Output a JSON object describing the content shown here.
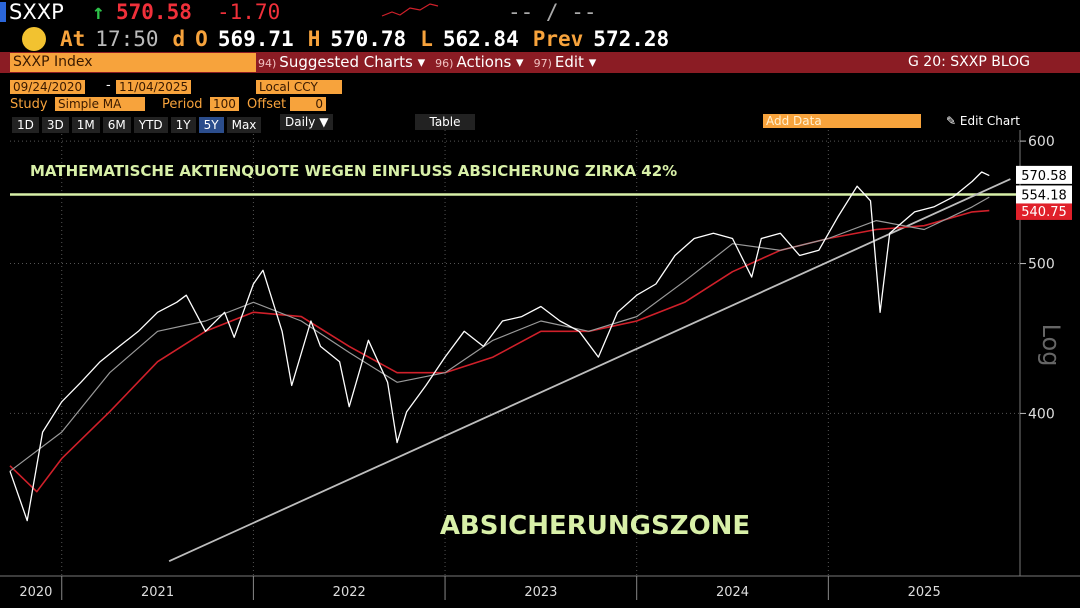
{
  "header": {
    "ticker": "SXXP",
    "arrow": "↑",
    "last": "570.58",
    "change": "-1.70",
    "bid_ask": "-- / --",
    "quote": [
      [
        "At",
        "17:50"
      ],
      [
        "d",
        ""
      ],
      [
        "O",
        "569.71"
      ],
      [
        "H",
        "570.78"
      ],
      [
        "L",
        "562.84"
      ],
      [
        "Prev",
        "572.28"
      ]
    ]
  },
  "toolbar": {
    "security": "SXXP Index",
    "menus": [
      {
        "num": "94)",
        "label": "Suggested Charts"
      },
      {
        "num": "96)",
        "label": "Actions"
      },
      {
        "num": "97)",
        "label": "Edit"
      }
    ],
    "right": "G 20: SXXP BLOG",
    "start_date": "09/24/2020",
    "date_sep": "-",
    "end_date": "11/04/2025",
    "currency": "Local CCY",
    "study_label": "Study",
    "study": "Simple MA",
    "period_label": "Period",
    "period": "100",
    "offset_label": "Offset",
    "offset": "0",
    "ranges": [
      {
        "label": "1D"
      },
      {
        "label": "3D"
      },
      {
        "label": "1M"
      },
      {
        "label": "6M"
      },
      {
        "label": "YTD"
      },
      {
        "label": "1Y"
      },
      {
        "label": "5Y",
        "active": true
      },
      {
        "label": "Max"
      }
    ],
    "frequency": "Daily",
    "table": "Table",
    "add_data": "Add Data",
    "edit_chart": "Edit Chart"
  },
  "chart_data": {
    "type": "line",
    "log_scale": true,
    "y_axis_label": "Log",
    "annotations": [
      "MATHEMATISCHE AKTIENQUOTE WEGEN EINFLUSS ABSICHERUNG ZIRKA 42%",
      "ABSICHERUNGSZONE"
    ],
    "xlim": [
      2020.73,
      2026.0
    ],
    "xticks": [
      {
        "value": 2020,
        "label": "2020"
      },
      {
        "value": 2021,
        "label": "2021"
      },
      {
        "value": 2022,
        "label": "2022"
      },
      {
        "value": 2023,
        "label": "2023"
      },
      {
        "value": 2024,
        "label": "2024"
      },
      {
        "value": 2025,
        "label": "2025"
      }
    ],
    "ylim": [
      314,
      610
    ],
    "yticks": [
      400,
      500,
      600
    ],
    "series": [
      {
        "color": "#ffffff",
        "width": 1.3,
        "x": [
          2020.73,
          2020.82,
          2020.9,
          2021.0,
          2021.1,
          2021.2,
          2021.3,
          2021.4,
          2021.5,
          2021.6,
          2021.65,
          2021.75,
          2021.85,
          2021.9,
          2022.0,
          2022.05,
          2022.15,
          2022.2,
          2022.3,
          2022.35,
          2022.45,
          2022.5,
          2022.6,
          2022.7,
          2022.75,
          2022.8,
          2022.9,
          2023.0,
          2023.1,
          2023.2,
          2023.3,
          2023.4,
          2023.5,
          2023.6,
          2023.7,
          2023.8,
          2023.9,
          2024.0,
          2024.1,
          2024.2,
          2024.3,
          2024.4,
          2024.5,
          2024.6,
          2024.65,
          2024.75,
          2024.85,
          2024.95,
          2025.05,
          2025.15,
          2025.22,
          2025.27,
          2025.32,
          2025.45,
          2025.55,
          2025.65,
          2025.75,
          2025.8,
          2025.84
        ],
        "values": [
          367,
          341,
          389,
          407,
          419,
          432,
          442,
          452,
          465,
          472,
          477,
          452,
          465,
          448,
          485,
          495,
          452,
          417,
          459,
          442,
          432,
          404,
          446,
          419,
          383,
          401,
          417,
          435,
          452,
          442,
          459,
          462,
          469,
          459,
          452,
          435,
          465,
          477,
          485,
          506,
          519,
          523,
          519,
          490,
          519,
          523,
          506,
          510,
          536,
          561,
          549,
          465,
          523,
          540,
          544,
          552,
          565,
          573,
          570
        ]
      },
      {
        "color": "#9a9a9a",
        "width": 1.2,
        "x": [
          2020.73,
          2021.0,
          2021.25,
          2021.5,
          2021.75,
          2022.0,
          2022.25,
          2022.5,
          2022.75,
          2023.0,
          2023.25,
          2023.5,
          2023.75,
          2024.0,
          2024.25,
          2024.5,
          2024.75,
          2025.0,
          2025.25,
          2025.5,
          2025.75,
          2025.84
        ],
        "values": [
          367,
          389,
          425,
          452,
          459,
          472,
          459,
          438,
          419,
          425,
          446,
          459,
          452,
          462,
          487,
          515,
          510,
          519,
          533,
          526,
          544,
          552
        ]
      },
      {
        "color": "#d0202a",
        "width": 1.6,
        "x": [
          2020.73,
          2020.87,
          2021.0,
          2021.25,
          2021.5,
          2021.75,
          2022.0,
          2022.25,
          2022.5,
          2022.75,
          2023.0,
          2023.25,
          2023.5,
          2023.75,
          2024.0,
          2024.25,
          2024.5,
          2024.75,
          2025.0,
          2025.25,
          2025.5,
          2025.75,
          2025.84
        ],
        "values": [
          370,
          356,
          374,
          401,
          432,
          452,
          465,
          462,
          442,
          425,
          425,
          435,
          452,
          452,
          459,
          472,
          494,
          510,
          519,
          526,
          529,
          540,
          541
        ]
      },
      {
        "color": "#bdbdbd",
        "width": 1.8,
        "x": [
          2021.56,
          2025.95
        ],
        "values": [
          321,
          567
        ]
      }
    ],
    "reference_line": {
      "value": 554.18,
      "color": "#d8f0a8"
    },
    "markers": [
      {
        "value": 570.58,
        "color": "#ffffff"
      },
      {
        "value": 540.75,
        "color": "#e0202a"
      }
    ]
  }
}
